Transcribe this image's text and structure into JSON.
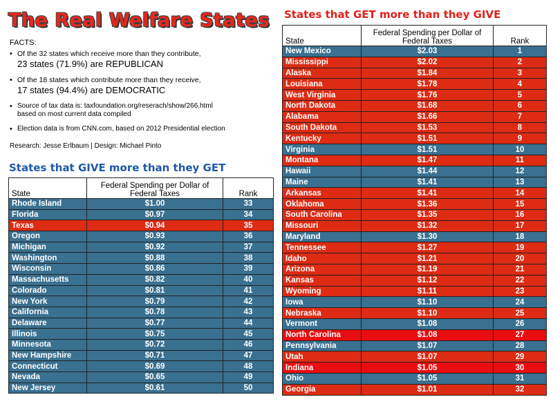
{
  "title": "The Real Welfare States",
  "facts": {
    "heading": "FACTS:",
    "item1_line1": "Of the 32 states which receive more than they contribute,",
    "item1_line2": "23 states (71.9%) are REPUBLICAN",
    "item2_line1": "Of the 18 states which contribute more than they receive,",
    "item2_line2": "17 states (94.4%) are DEMOCRATIC",
    "item3_line1": "Source of tax data is: taxfoundation.org/reserach/show/266.html",
    "item3_line2": "based on most current data compiled",
    "item4": "Election data is from CNN.com, based on 2012 Presidential election"
  },
  "credits": "Research: Jesse Erlbaum | Design: Michael Pinto",
  "colors": {
    "blue_row": "#3a7090",
    "red_row": "#dd2b14",
    "title_red": "#e8271d",
    "give_heading": "#1f5aa6"
  },
  "give": {
    "heading": "States that GIVE more than they GET",
    "headers": {
      "state": "State",
      "spending_line1": "Federal Spending per Dollar of",
      "spending_line2": "Federal Taxes",
      "rank": "Rank"
    },
    "rows": [
      {
        "state": "Rhode Island",
        "spending": "$1.00",
        "rank": "33",
        "party": "blue"
      },
      {
        "state": "Florida",
        "spending": "$0.97",
        "rank": "34",
        "party": "blue"
      },
      {
        "state": "Texas",
        "spending": "$0.94",
        "rank": "35",
        "party": "red"
      },
      {
        "state": "Oregon",
        "spending": "$0.93",
        "rank": "36",
        "party": "blue"
      },
      {
        "state": "Michigan",
        "spending": "$0.92",
        "rank": "37",
        "party": "blue"
      },
      {
        "state": "Washington",
        "spending": "$0.88",
        "rank": "38",
        "party": "blue"
      },
      {
        "state": "Wisconsin",
        "spending": "$0.86",
        "rank": "39",
        "party": "blue"
      },
      {
        "state": "Massachusetts",
        "spending": "$0.82",
        "rank": "40",
        "party": "blue"
      },
      {
        "state": "Colorado",
        "spending": "$0.81",
        "rank": "41",
        "party": "blue"
      },
      {
        "state": "New York",
        "spending": "$0.79",
        "rank": "42",
        "party": "blue"
      },
      {
        "state": "California",
        "spending": "$0.78",
        "rank": "43",
        "party": "blue"
      },
      {
        "state": "Delaware",
        "spending": "$0.77",
        "rank": "44",
        "party": "blue"
      },
      {
        "state": "Illinois",
        "spending": "$0.75",
        "rank": "45",
        "party": "blue"
      },
      {
        "state": "Minnesota",
        "spending": "$0.72",
        "rank": "46",
        "party": "blue"
      },
      {
        "state": "New Hampshire",
        "spending": "$0.71",
        "rank": "47",
        "party": "blue"
      },
      {
        "state": "Connecticut",
        "spending": "$0.69",
        "rank": "48",
        "party": "blue"
      },
      {
        "state": "Nevada",
        "spending": "$0.65",
        "rank": "49",
        "party": "blue"
      },
      {
        "state": "New Jersey",
        "spending": "$0.61",
        "rank": "50",
        "party": "blue"
      }
    ]
  },
  "get": {
    "heading": "States that GET more than they GIVE",
    "headers": {
      "state": "State",
      "spending_line1": "Federal Spending per Dollar of",
      "spending_line2": "Federal Taxes",
      "rank": "Rank"
    },
    "rows": [
      {
        "state": "New Mexico",
        "spending": "$2.03",
        "rank": "1",
        "party": "blue"
      },
      {
        "state": "Mississippi",
        "spending": "$2.02",
        "rank": "2",
        "party": "red"
      },
      {
        "state": "Alaska",
        "spending": "$1.84",
        "rank": "3",
        "party": "red"
      },
      {
        "state": "Louisiana",
        "spending": "$1.78",
        "rank": "4",
        "party": "red"
      },
      {
        "state": "West Virginia",
        "spending": "$1.76",
        "rank": "5",
        "party": "red"
      },
      {
        "state": "North Dakota",
        "spending": "$1.68",
        "rank": "6",
        "party": "red"
      },
      {
        "state": "Alabama",
        "spending": "$1.66",
        "rank": "7",
        "party": "red"
      },
      {
        "state": "South Dakota",
        "spending": "$1.53",
        "rank": "8",
        "party": "red"
      },
      {
        "state": "Kentucky",
        "spending": "$1.51",
        "rank": "9",
        "party": "red"
      },
      {
        "state": "Virginia",
        "spending": "$1.51",
        "rank": "10",
        "party": "blue"
      },
      {
        "state": "Montana",
        "spending": "$1.47",
        "rank": "11",
        "party": "red"
      },
      {
        "state": "Hawaii",
        "spending": "$1.44",
        "rank": "12",
        "party": "blue"
      },
      {
        "state": "Maine",
        "spending": "$1.41",
        "rank": "13",
        "party": "blue"
      },
      {
        "state": "Arkansas",
        "spending": "$1.41",
        "rank": "14",
        "party": "red"
      },
      {
        "state": "Oklahoma",
        "spending": "$1.36",
        "rank": "15",
        "party": "red"
      },
      {
        "state": "South Carolina",
        "spending": "$1.35",
        "rank": "16",
        "party": "red"
      },
      {
        "state": "Missouri",
        "spending": "$1.32",
        "rank": "17",
        "party": "red"
      },
      {
        "state": "Maryland",
        "spending": "$1.30",
        "rank": "18",
        "party": "blue"
      },
      {
        "state": "Tennessee",
        "spending": "$1.27",
        "rank": "19",
        "party": "red"
      },
      {
        "state": "Idaho",
        "spending": "$1.21",
        "rank": "20",
        "party": "red"
      },
      {
        "state": "Arizona",
        "spending": "$1.19",
        "rank": "21",
        "party": "red"
      },
      {
        "state": "Kansas",
        "spending": "$1.12",
        "rank": "22",
        "party": "red"
      },
      {
        "state": "Wyoming",
        "spending": "$1.11",
        "rank": "23",
        "party": "red"
      },
      {
        "state": "Iowa",
        "spending": "$1.10",
        "rank": "24",
        "party": "blue"
      },
      {
        "state": "Nebraska",
        "spending": "$1.10",
        "rank": "25",
        "party": "red"
      },
      {
        "state": "Vermont",
        "spending": "$1.08",
        "rank": "26",
        "party": "blue"
      },
      {
        "state": "North Carolina",
        "spending": "$1.08",
        "rank": "27",
        "party": "rd"
      },
      {
        "state": "Pennsylvania",
        "spending": "$1.07",
        "rank": "28",
        "party": "blue"
      },
      {
        "state": "Utah",
        "spending": "$1.07",
        "rank": "29",
        "party": "red"
      },
      {
        "state": "Indiana",
        "spending": "$1.05",
        "rank": "30",
        "party": "rd"
      },
      {
        "state": "Ohio",
        "spending": "$1.05",
        "rank": "31",
        "party": "blue"
      },
      {
        "state": "Georgia",
        "spending": "$1.01",
        "rank": "32",
        "party": "red"
      }
    ]
  }
}
